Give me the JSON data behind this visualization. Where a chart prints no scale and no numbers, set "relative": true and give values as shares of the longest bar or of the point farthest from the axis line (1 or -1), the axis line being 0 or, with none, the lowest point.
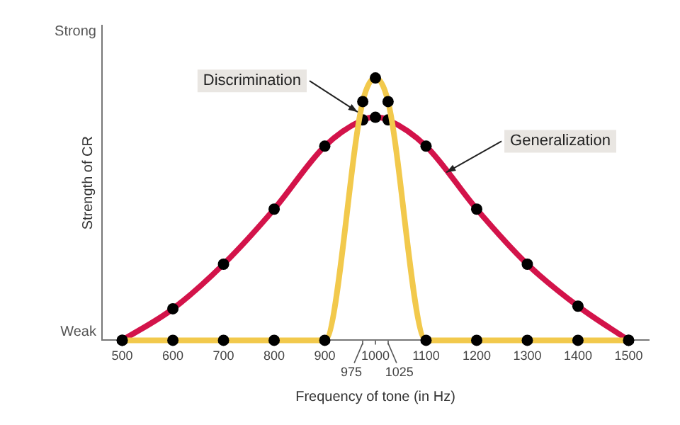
{
  "chart_data": {
    "type": "line",
    "xlabel": "Frequency of tone (in Hz)",
    "ylabel": "Strength of CR",
    "relative": true,
    "x": [
      500,
      600,
      700,
      800,
      900,
      975,
      1000,
      1025,
      1100,
      1200,
      1300,
      1400,
      1500
    ],
    "series": [
      {
        "color": "#f2c94c",
        "values": [
          0,
          0,
          0,
          0,
          0,
          0.91,
          1,
          0.91,
          0,
          0,
          0,
          0,
          0
        ]
      },
      {
        "color": "#d3134a",
        "values": [
          0,
          0.12,
          0.29,
          0.5,
          0.74,
          0.84,
          0.85,
          0.84,
          0.74,
          0.5,
          0.29,
          0.13,
          0
        ]
      }
    ],
    "xlim": [
      460,
      1540
    ],
    "xticks": [
      500,
      600,
      700,
      800,
      900,
      {
        "value": 975,
        "label": null
      },
      1000,
      {
        "value": 1025,
        "label": null
      },
      1100,
      1200,
      1300,
      1400,
      1500
    ],
    "marker": "circle",
    "legend": false,
    "grid": false,
    "annotations": [
      "Strong",
      "Weak",
      {
        "text": "975",
        "x": 975
      },
      {
        "text": "1025",
        "x": 1025
      },
      {
        "text": "Discrimination",
        "x": 965,
        "y": 0.87
      },
      {
        "text": "Generalization",
        "x": 1140,
        "y": 0.64
      }
    ]
  }
}
